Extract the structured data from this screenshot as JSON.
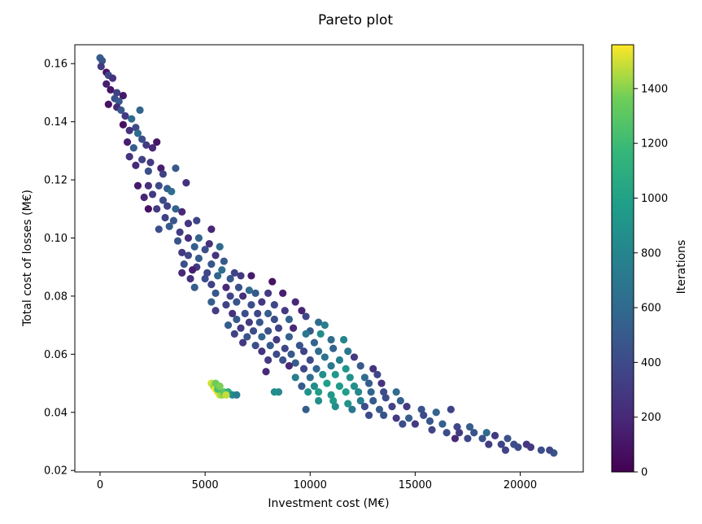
{
  "chart_data": {
    "type": "scatter",
    "title": "Pareto plot",
    "xlabel": "Investment cost (M€)",
    "ylabel": "Total cost of losses (M€)",
    "xlim": [
      -1200,
      23000
    ],
    "ylim": [
      0.0195,
      0.1665
    ],
    "x_ticks": [
      0,
      5000,
      10000,
      15000,
      20000
    ],
    "y_ticks": [
      0.02,
      0.04,
      0.06,
      0.08,
      0.1,
      0.12,
      0.14,
      0.16
    ],
    "grid": false,
    "colormap": "viridis",
    "colorbar": {
      "label": "Iterations",
      "min": 0,
      "max": 1560,
      "ticks": [
        0,
        200,
        400,
        600,
        800,
        1000,
        1200,
        1400
      ]
    },
    "points": [
      [
        0,
        0.162,
        520
      ],
      [
        100,
        0.161,
        470
      ],
      [
        50,
        0.159,
        300
      ],
      [
        300,
        0.157,
        80
      ],
      [
        400,
        0.156,
        380
      ],
      [
        600,
        0.155,
        250
      ],
      [
        300,
        0.153,
        150
      ],
      [
        500,
        0.151,
        100
      ],
      [
        800,
        0.15,
        350
      ],
      [
        700,
        0.148,
        430
      ],
      [
        900,
        0.147,
        500
      ],
      [
        1100,
        0.149,
        120
      ],
      [
        400,
        0.146,
        90
      ],
      [
        800,
        0.145,
        200
      ],
      [
        1000,
        0.144,
        480
      ],
      [
        1200,
        0.142,
        300
      ],
      [
        1500,
        0.141,
        600
      ],
      [
        1100,
        0.139,
        80
      ],
      [
        1400,
        0.137,
        250
      ],
      [
        1700,
        0.138,
        400
      ],
      [
        1900,
        0.144,
        560
      ],
      [
        1800,
        0.136,
        620
      ],
      [
        2000,
        0.134,
        420
      ],
      [
        1300,
        0.133,
        150
      ],
      [
        2200,
        0.132,
        300
      ],
      [
        1600,
        0.131,
        520
      ],
      [
        2500,
        0.131,
        200
      ],
      [
        1400,
        0.128,
        260
      ],
      [
        2000,
        0.127,
        350
      ],
      [
        2700,
        0.133,
        100
      ],
      [
        2400,
        0.126,
        300
      ],
      [
        1700,
        0.125,
        200
      ],
      [
        2300,
        0.123,
        430
      ],
      [
        2900,
        0.124,
        150
      ],
      [
        3000,
        0.122,
        340
      ],
      [
        3600,
        0.124,
        480
      ],
      [
        1800,
        0.118,
        120
      ],
      [
        2300,
        0.118,
        240
      ],
      [
        2800,
        0.118,
        400
      ],
      [
        3200,
        0.117,
        520
      ],
      [
        2500,
        0.115,
        300
      ],
      [
        2100,
        0.114,
        180
      ],
      [
        3400,
        0.116,
        620
      ],
      [
        4100,
        0.119,
        250
      ],
      [
        3000,
        0.113,
        400
      ],
      [
        3200,
        0.111,
        350
      ],
      [
        2700,
        0.11,
        300
      ],
      [
        3600,
        0.11,
        550
      ],
      [
        2300,
        0.11,
        80
      ],
      [
        3900,
        0.109,
        200
      ],
      [
        3100,
        0.107,
        360
      ],
      [
        3500,
        0.106,
        470
      ],
      [
        4200,
        0.105,
        280
      ],
      [
        3300,
        0.104,
        500
      ],
      [
        2800,
        0.103,
        420
      ],
      [
        4600,
        0.106,
        360
      ],
      [
        3800,
        0.102,
        320
      ],
      [
        4200,
        0.1,
        230
      ],
      [
        4700,
        0.1,
        560
      ],
      [
        5300,
        0.103,
        180
      ],
      [
        3700,
        0.099,
        470
      ],
      [
        5200,
        0.098,
        260
      ],
      [
        4500,
        0.097,
        520
      ],
      [
        3900,
        0.095,
        300
      ],
      [
        5000,
        0.096,
        420
      ],
      [
        5700,
        0.097,
        600
      ],
      [
        4200,
        0.094,
        380
      ],
      [
        4700,
        0.093,
        520
      ],
      [
        5500,
        0.094,
        260
      ],
      [
        4000,
        0.091,
        440
      ],
      [
        4600,
        0.09,
        300
      ],
      [
        5300,
        0.091,
        480
      ],
      [
        5900,
        0.092,
        500
      ],
      [
        4400,
        0.089,
        150
      ],
      [
        5100,
        0.088,
        380
      ],
      [
        5800,
        0.089,
        620
      ],
      [
        6400,
        0.088,
        350
      ],
      [
        3900,
        0.088,
        200
      ],
      [
        4300,
        0.086,
        260
      ],
      [
        5000,
        0.086,
        420
      ],
      [
        5600,
        0.087,
        560
      ],
      [
        6200,
        0.086,
        480
      ],
      [
        6700,
        0.087,
        300
      ],
      [
        7200,
        0.087,
        120
      ],
      [
        4500,
        0.083,
        520
      ],
      [
        5300,
        0.084,
        350
      ],
      [
        6000,
        0.083,
        200
      ],
      [
        6600,
        0.083,
        430
      ],
      [
        7100,
        0.082,
        600
      ],
      [
        8200,
        0.085,
        80
      ],
      [
        5500,
        0.081,
        480
      ],
      [
        6200,
        0.08,
        360
      ],
      [
        6800,
        0.08,
        240
      ],
      [
        7400,
        0.081,
        500
      ],
      [
        8000,
        0.081,
        300
      ],
      [
        8700,
        0.081,
        150
      ],
      [
        5300,
        0.078,
        520
      ],
      [
        6000,
        0.077,
        340
      ],
      [
        6500,
        0.078,
        460
      ],
      [
        7200,
        0.077,
        420
      ],
      [
        7700,
        0.078,
        280
      ],
      [
        8300,
        0.077,
        380
      ],
      [
        9300,
        0.078,
        200
      ],
      [
        5500,
        0.075,
        320
      ],
      [
        6300,
        0.074,
        260
      ],
      [
        6900,
        0.074,
        420
      ],
      [
        7500,
        0.074,
        380
      ],
      [
        8000,
        0.074,
        520
      ],
      [
        8800,
        0.075,
        300
      ],
      [
        9600,
        0.075,
        180
      ],
      [
        6500,
        0.072,
        500
      ],
      [
        7100,
        0.071,
        300
      ],
      [
        7600,
        0.071,
        460
      ],
      [
        8300,
        0.072,
        420
      ],
      [
        9000,
        0.072,
        560
      ],
      [
        9800,
        0.073,
        380
      ],
      [
        10400,
        0.071,
        620
      ],
      [
        6100,
        0.07,
        520
      ],
      [
        6700,
        0.069,
        300
      ],
      [
        7300,
        0.068,
        400
      ],
      [
        8000,
        0.068,
        440
      ],
      [
        8500,
        0.069,
        350
      ],
      [
        9200,
        0.069,
        200
      ],
      [
        10000,
        0.068,
        500
      ],
      [
        10700,
        0.07,
        760
      ],
      [
        6400,
        0.067,
        340
      ],
      [
        7000,
        0.066,
        460
      ],
      [
        7700,
        0.066,
        560
      ],
      [
        8400,
        0.065,
        300
      ],
      [
        9000,
        0.066,
        520
      ],
      [
        9800,
        0.067,
        700
      ],
      [
        10500,
        0.067,
        860
      ],
      [
        6800,
        0.064,
        300
      ],
      [
        7400,
        0.063,
        420
      ],
      [
        8100,
        0.063,
        500
      ],
      [
        8800,
        0.062,
        380
      ],
      [
        9500,
        0.063,
        460
      ],
      [
        10200,
        0.064,
        560
      ],
      [
        11000,
        0.065,
        620
      ],
      [
        11600,
        0.065,
        800
      ],
      [
        7700,
        0.061,
        260
      ],
      [
        8400,
        0.06,
        400
      ],
      [
        9100,
        0.06,
        500
      ],
      [
        9700,
        0.061,
        360
      ],
      [
        10400,
        0.061,
        620
      ],
      [
        11100,
        0.062,
        560
      ],
      [
        11800,
        0.061,
        700
      ],
      [
        8000,
        0.058,
        300
      ],
      [
        8700,
        0.058,
        440
      ],
      [
        9300,
        0.057,
        520
      ],
      [
        10000,
        0.058,
        400
      ],
      [
        10700,
        0.059,
        660
      ],
      [
        11400,
        0.058,
        760
      ],
      [
        12100,
        0.059,
        300
      ],
      [
        9000,
        0.056,
        200
      ],
      [
        9700,
        0.055,
        380
      ],
      [
        10300,
        0.055,
        580
      ],
      [
        11000,
        0.056,
        700
      ],
      [
        11700,
        0.055,
        920
      ],
      [
        12400,
        0.056,
        500
      ],
      [
        13000,
        0.055,
        260
      ],
      [
        7900,
        0.054,
        200
      ],
      [
        9300,
        0.052,
        760
      ],
      [
        10000,
        0.052,
        620
      ],
      [
        10600,
        0.053,
        880
      ],
      [
        11200,
        0.053,
        940
      ],
      [
        11900,
        0.052,
        880
      ],
      [
        12600,
        0.052,
        620
      ],
      [
        13200,
        0.053,
        380
      ],
      [
        8500,
        0.047,
        820
      ],
      [
        8300,
        0.047,
        860
      ],
      [
        9600,
        0.049,
        500
      ],
      [
        10200,
        0.049,
        860
      ],
      [
        10800,
        0.05,
        980
      ],
      [
        11400,
        0.049,
        940
      ],
      [
        12100,
        0.049,
        880
      ],
      [
        12800,
        0.05,
        520
      ],
      [
        13400,
        0.05,
        260
      ],
      [
        9900,
        0.047,
        900
      ],
      [
        10400,
        0.047,
        960
      ],
      [
        11000,
        0.046,
        920
      ],
      [
        11700,
        0.047,
        980
      ],
      [
        12300,
        0.047,
        820
      ],
      [
        12900,
        0.047,
        560
      ],
      [
        13500,
        0.047,
        400
      ],
      [
        14100,
        0.047,
        620
      ],
      [
        10400,
        0.044,
        880
      ],
      [
        11100,
        0.044,
        960
      ],
      [
        11800,
        0.043,
        900
      ],
      [
        12400,
        0.044,
        760
      ],
      [
        13000,
        0.044,
        500
      ],
      [
        13600,
        0.045,
        420
      ],
      [
        14300,
        0.044,
        540
      ],
      [
        9800,
        0.041,
        520
      ],
      [
        11200,
        0.042,
        860
      ],
      [
        12000,
        0.041,
        700
      ],
      [
        12600,
        0.042,
        400
      ],
      [
        13300,
        0.041,
        500
      ],
      [
        13900,
        0.042,
        360
      ],
      [
        14600,
        0.042,
        300
      ],
      [
        15300,
        0.041,
        460
      ],
      [
        12800,
        0.039,
        400
      ],
      [
        13500,
        0.039,
        460
      ],
      [
        14100,
        0.038,
        300
      ],
      [
        14700,
        0.038,
        520
      ],
      [
        15400,
        0.039,
        400
      ],
      [
        16000,
        0.04,
        560
      ],
      [
        16700,
        0.041,
        360
      ],
      [
        14400,
        0.036,
        420
      ],
      [
        15000,
        0.036,
        300
      ],
      [
        15700,
        0.037,
        480
      ],
      [
        16300,
        0.036,
        540
      ],
      [
        17000,
        0.035,
        380
      ],
      [
        17600,
        0.035,
        520
      ],
      [
        15800,
        0.034,
        360
      ],
      [
        16500,
        0.033,
        420
      ],
      [
        17100,
        0.033,
        300
      ],
      [
        17800,
        0.033,
        460
      ],
      [
        18400,
        0.033,
        600
      ],
      [
        16900,
        0.031,
        200
      ],
      [
        17500,
        0.031,
        380
      ],
      [
        18200,
        0.031,
        440
      ],
      [
        18800,
        0.032,
        300
      ],
      [
        19400,
        0.031,
        440
      ],
      [
        18500,
        0.029,
        320
      ],
      [
        19100,
        0.029,
        360
      ],
      [
        19700,
        0.029,
        420
      ],
      [
        20300,
        0.029,
        280
      ],
      [
        19300,
        0.027,
        360
      ],
      [
        19900,
        0.028,
        420
      ],
      [
        20500,
        0.028,
        300
      ],
      [
        21000,
        0.027,
        420
      ],
      [
        21600,
        0.026,
        460
      ],
      [
        21400,
        0.027,
        380
      ],
      [
        5300,
        0.05,
        1500
      ],
      [
        5400,
        0.049,
        1450
      ],
      [
        5500,
        0.048,
        1540
      ],
      [
        5600,
        0.047,
        1520
      ],
      [
        5700,
        0.046,
        1500
      ],
      [
        5800,
        0.046,
        1420
      ],
      [
        5900,
        0.047,
        1300
      ],
      [
        5600,
        0.048,
        1250
      ],
      [
        6100,
        0.047,
        1100
      ],
      [
        6300,
        0.046,
        850
      ],
      [
        6500,
        0.046,
        760
      ],
      [
        5500,
        0.05,
        1350
      ],
      [
        6000,
        0.046,
        1480
      ],
      [
        5700,
        0.049,
        1380
      ]
    ]
  }
}
